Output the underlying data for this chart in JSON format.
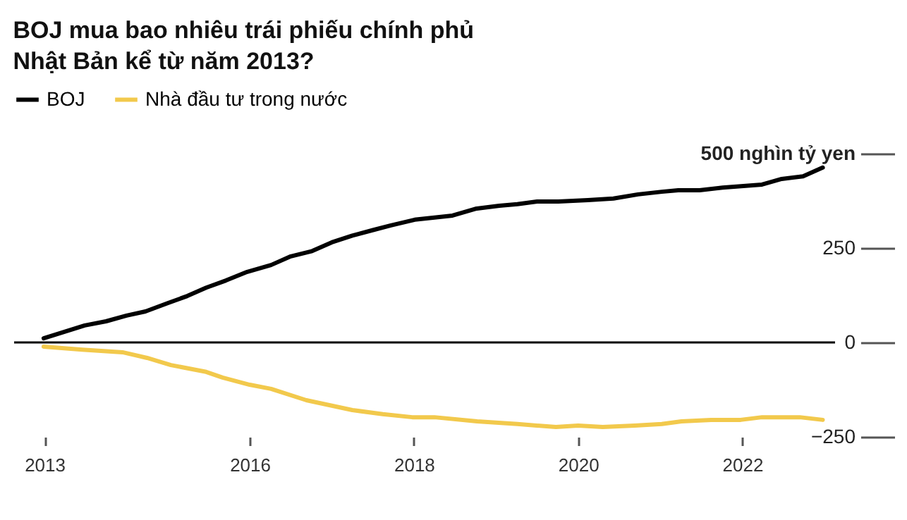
{
  "chart_data": {
    "type": "line",
    "title": [
      "BOJ mua bao nhiêu trái phiếu chính phủ",
      "Nhật Bản kể từ năm 2013?"
    ],
    "series": [
      {
        "name": "BOJ",
        "color": "#000000",
        "x": [
          2013.49,
          2013.99,
          2014.25,
          2014.5,
          2014.73,
          2015.0,
          2015.24,
          2015.47,
          2015.71,
          2015.97,
          2016.26,
          2016.5,
          2016.76,
          2017.0,
          2017.25,
          2017.51,
          2017.72,
          2018.01,
          2018.47,
          2018.75,
          2019.04,
          2019.26,
          2019.5,
          2019.76,
          2020.12,
          2020.43,
          2020.73,
          2021.02,
          2021.22,
          2021.48,
          2021.76,
          2022.24,
          2022.48,
          2022.74,
          2022.98
        ],
        "values": [
          11,
          45,
          56,
          71,
          82,
          104,
          123,
          145,
          164,
          187,
          205,
          228,
          242,
          265,
          283,
          298,
          310,
          325,
          336,
          354,
          362,
          366,
          373,
          373,
          377,
          381,
          392,
          399,
          403,
          403,
          410,
          418,
          433,
          440,
          463
        ]
      },
      {
        "name": "Nhà đầu tư trong nước",
        "color": "#f2c94c",
        "x": [
          2013.49,
          2013.96,
          2014.45,
          2014.75,
          2015.04,
          2015.47,
          2015.67,
          2016.0,
          2016.26,
          2016.69,
          2017.25,
          2017.62,
          2017.98,
          2018.25,
          2018.77,
          2019.26,
          2019.73,
          2020.0,
          2020.3,
          2020.69,
          2021.02,
          2021.26,
          2021.62,
          2021.98,
          2022.24,
          2022.7,
          2022.98
        ],
        "values": [
          -11,
          -19,
          -26,
          -41,
          -60,
          -78,
          -93,
          -112,
          -123,
          -153,
          -179,
          -190,
          -198,
          -198,
          -209,
          -216,
          -224,
          -220,
          -224,
          -220,
          -216,
          -209,
          -205,
          -205,
          -198,
          -198,
          -205
        ]
      }
    ],
    "xlim": [
      2013.13,
      2023.13
    ],
    "xticks": [
      {
        "value": 2013.5,
        "label": "2013"
      },
      2016,
      2018,
      2020,
      2022
    ],
    "ylim": [
      -250,
      500
    ],
    "yticks": [
      -250,
      0,
      250,
      {
        "value": 500,
        "label": "500 nghìn tỷ yen"
      }
    ],
    "ref_lines": [
      {
        "axis": "y",
        "value": 0,
        "color": "#000000"
      }
    ],
    "grid": false,
    "legend": "top left",
    "line_style": "solid",
    "marker": "none"
  }
}
